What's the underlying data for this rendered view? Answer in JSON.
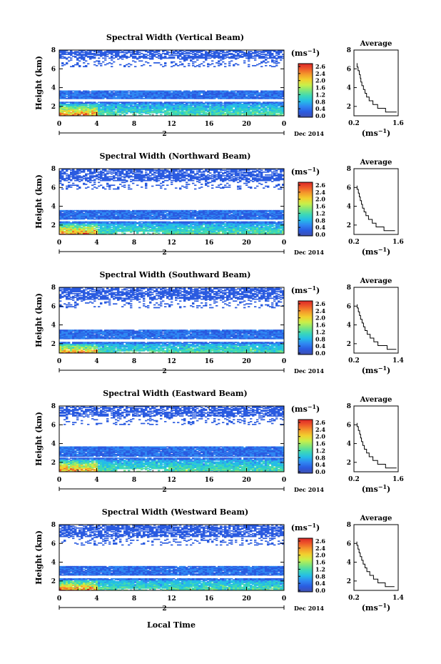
{
  "figure": {
    "bottom_xlabel": "Local Time",
    "colorbar_unit": "(ms",
    "colorbar_unit_sup": "−1",
    "colorbar_unit_close": ")",
    "colorbar_ticks": [
      "2.6",
      "2.4",
      "2.0",
      "1.6",
      "1.2",
      "0.8",
      "0.4",
      "0.0"
    ],
    "colormap": [
      "#4050b0",
      "#2a5be0",
      "#2f86f2",
      "#25bde6",
      "#3dd8b6",
      "#7fe67b",
      "#c9ef4a",
      "#f2d02e",
      "#f49a2b",
      "#ee5a2a",
      "#dc2727"
    ],
    "main_ylabel": "Height (km)",
    "date_label": "Dec 2014",
    "date_tick_label": "2",
    "x_ticks": [
      "0",
      "4",
      "8",
      "12",
      "16",
      "20",
      "0"
    ],
    "y_ticks": [
      "2",
      "4",
      "6",
      "8"
    ],
    "avg_title": "Average",
    "avg_xlabel": "(ms",
    "avg_xlabel_sup": "−1",
    "avg_xlabel_close": ")",
    "avg_y_ticks": [
      "2",
      "4",
      "6",
      "8"
    ]
  },
  "chart_data": [
    {
      "type": "heatmap",
      "title": "Spectral Width (Vertical Beam)",
      "x_range_hours": [
        0,
        24
      ],
      "y_range_km": [
        1,
        8
      ],
      "value_range_ms": [
        0,
        2.8
      ],
      "layers": [
        {
          "name": "upper sparse echoes",
          "height_km": [
            6.2,
            8.0
          ],
          "width_ms": 0.3
        },
        {
          "name": "middle layer",
          "height_km": [
            2.8,
            3.7
          ],
          "width_ms": 0.45
        },
        {
          "name": "boundary layer",
          "height_km": [
            1.0,
            2.5
          ],
          "width_ms": [
            0.6,
            2.6
          ]
        }
      ],
      "avg_profile": {
        "xlim": [
          0.2,
          1.6
        ],
        "x_ticks": [
          "0.2",
          "1.6"
        ],
        "ylim": [
          1,
          8
        ],
        "height_km": [
          1.4,
          1.8,
          2.2,
          2.6,
          3.0,
          3.4,
          3.8,
          4.2,
          4.6,
          5.0,
          5.4,
          5.8,
          6.2,
          6.6
        ],
        "width_ms": [
          1.55,
          1.2,
          0.95,
          0.8,
          0.68,
          0.6,
          0.55,
          0.5,
          0.45,
          0.42,
          0.4,
          0.37,
          0.33,
          0.3
        ]
      }
    },
    {
      "type": "heatmap",
      "title": "Spectral Width (Northward Beam)",
      "x_range_hours": [
        0,
        24
      ],
      "y_range_km": [
        1,
        8
      ],
      "value_range_ms": [
        0,
        2.8
      ],
      "layers": [
        {
          "name": "upper sparse echoes",
          "height_km": [
            5.8,
            8.0
          ],
          "width_ms": 0.3
        },
        {
          "name": "middle layer",
          "height_km": [
            2.6,
            3.6
          ],
          "width_ms": 0.45
        },
        {
          "name": "boundary layer",
          "height_km": [
            1.0,
            2.4
          ],
          "width_ms": [
            0.6,
            2.4
          ]
        }
      ],
      "avg_profile": {
        "xlim": [
          0.2,
          1.6
        ],
        "x_ticks": [
          "0.2",
          "1.6"
        ],
        "ylim": [
          1,
          8
        ],
        "height_km": [
          1.4,
          1.8,
          2.2,
          2.6,
          3.0,
          3.4,
          3.8,
          4.2,
          4.6,
          5.0,
          5.4,
          5.8,
          6.2
        ],
        "width_ms": [
          1.5,
          1.15,
          0.9,
          0.78,
          0.66,
          0.58,
          0.52,
          0.47,
          0.44,
          0.4,
          0.37,
          0.34,
          0.3
        ]
      }
    },
    {
      "type": "heatmap",
      "title": "Spectral Width (Southward Beam)",
      "x_range_hours": [
        0,
        24
      ],
      "y_range_km": [
        1,
        8
      ],
      "value_range_ms": [
        0,
        2.8
      ],
      "layers": [
        {
          "name": "upper sparse echoes",
          "height_km": [
            5.8,
            8.0
          ],
          "width_ms": 0.3
        },
        {
          "name": "middle layer",
          "height_km": [
            2.5,
            3.5
          ],
          "width_ms": 0.45
        },
        {
          "name": "boundary layer",
          "height_km": [
            1.0,
            2.2
          ],
          "width_ms": [
            0.6,
            2.4
          ]
        }
      ],
      "avg_profile": {
        "xlim": [
          0.2,
          1.4
        ],
        "x_ticks": [
          "0.2",
          "1.4"
        ],
        "ylim": [
          1,
          8
        ],
        "height_km": [
          1.4,
          1.8,
          2.2,
          2.6,
          3.0,
          3.4,
          3.8,
          4.2,
          4.6,
          5.0,
          5.4,
          5.8,
          6.2
        ],
        "width_ms": [
          1.35,
          1.1,
          0.85,
          0.74,
          0.64,
          0.56,
          0.5,
          0.46,
          0.42,
          0.38,
          0.35,
          0.32,
          0.29
        ]
      }
    },
    {
      "type": "heatmap",
      "title": "Spectral Width (Eastward Beam)",
      "x_range_hours": [
        0,
        24
      ],
      "y_range_km": [
        1,
        8
      ],
      "value_range_ms": [
        0,
        2.8
      ],
      "layers": [
        {
          "name": "upper sparse echoes",
          "height_km": [
            6.0,
            8.0
          ],
          "width_ms": 0.3
        },
        {
          "name": "middle layer",
          "height_km": [
            2.6,
            3.7
          ],
          "width_ms": 0.45
        },
        {
          "name": "boundary layer",
          "height_km": [
            1.0,
            2.5
          ],
          "width_ms": [
            0.6,
            2.6
          ]
        }
      ],
      "avg_profile": {
        "xlim": [
          0.2,
          1.6
        ],
        "x_ticks": [
          "0.2",
          "1.6"
        ],
        "ylim": [
          1,
          8
        ],
        "height_km": [
          1.4,
          1.8,
          2.2,
          2.6,
          3.0,
          3.4,
          3.8,
          4.2,
          4.6,
          5.0,
          5.4,
          5.8,
          6.2
        ],
        "width_ms": [
          1.55,
          1.2,
          0.95,
          0.8,
          0.68,
          0.6,
          0.53,
          0.48,
          0.44,
          0.41,
          0.38,
          0.34,
          0.3
        ]
      }
    },
    {
      "type": "heatmap",
      "title": "Spectral Width (Westward Beam)",
      "x_range_hours": [
        0,
        24
      ],
      "y_range_km": [
        1,
        8
      ],
      "value_range_ms": [
        0,
        2.8
      ],
      "layers": [
        {
          "name": "upper sparse echoes",
          "height_km": [
            5.8,
            8.0
          ],
          "width_ms": 0.3
        },
        {
          "name": "middle layer",
          "height_km": [
            2.6,
            3.6
          ],
          "width_ms": 0.45
        },
        {
          "name": "boundary layer",
          "height_km": [
            1.0,
            2.3
          ],
          "width_ms": [
            0.6,
            2.4
          ]
        }
      ],
      "avg_profile": {
        "xlim": [
          0.2,
          1.4
        ],
        "x_ticks": [
          "0.2",
          "1.4"
        ],
        "ylim": [
          1,
          8
        ],
        "height_km": [
          1.4,
          1.8,
          2.2,
          2.6,
          3.0,
          3.4,
          3.8,
          4.2,
          4.6,
          5.0,
          5.4,
          5.8,
          6.2
        ],
        "width_ms": [
          1.3,
          1.05,
          0.85,
          0.73,
          0.63,
          0.55,
          0.5,
          0.45,
          0.41,
          0.37,
          0.34,
          0.31,
          0.28
        ]
      }
    }
  ]
}
